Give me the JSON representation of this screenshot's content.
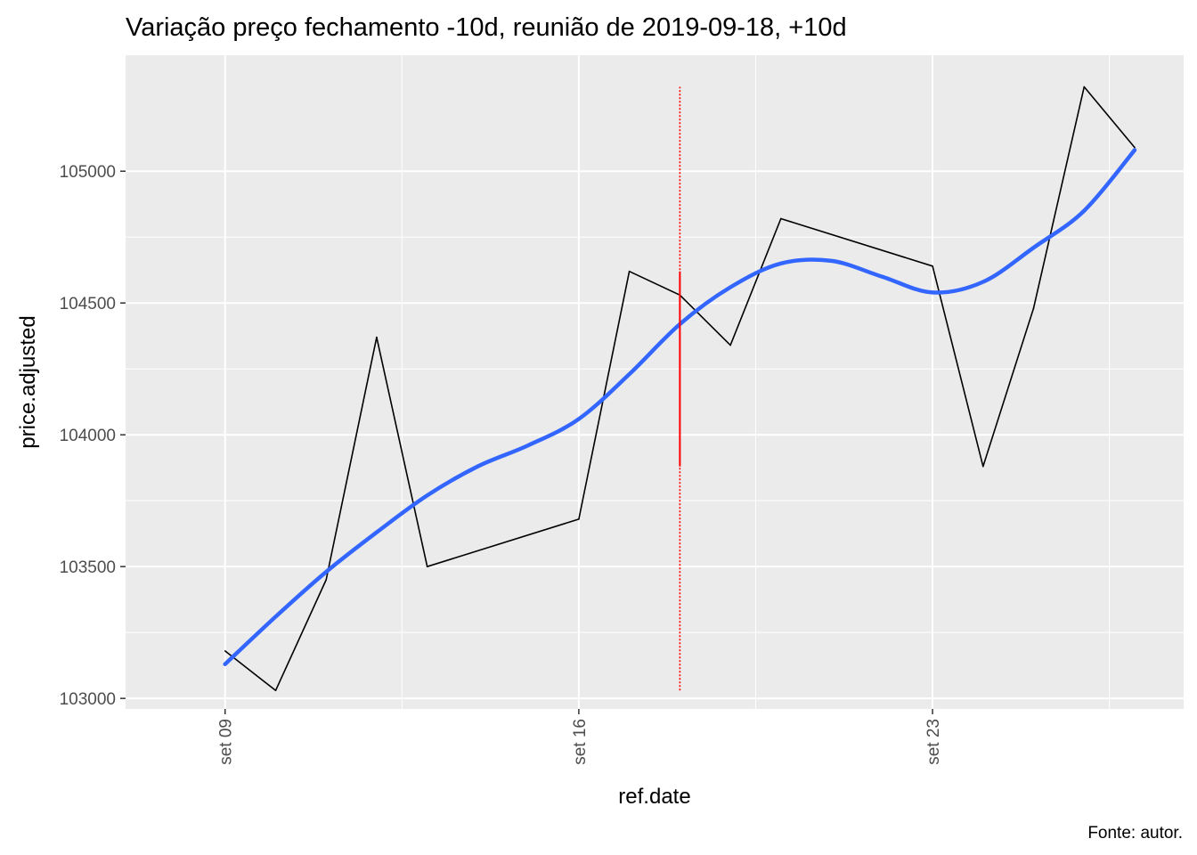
{
  "chart_data": {
    "type": "line",
    "title": "Variação preço fechamento -10d, reunião de 2019-09-18, +10d",
    "xlabel": "ref.date",
    "ylabel": "price.adjusted",
    "caption": "Fonte: autor.",
    "x_ticks": [
      {
        "label": "set 09",
        "date": "2019-09-09"
      },
      {
        "label": "set 16",
        "date": "2019-09-16"
      },
      {
        "label": "set 23",
        "date": "2019-09-23"
      }
    ],
    "y_ticks": [
      103000,
      103500,
      104000,
      104500,
      105000
    ],
    "xlim": [
      "2019-09-08",
      "2019-09-27"
    ],
    "ylim": [
      102960,
      105440
    ],
    "grid": true,
    "series": [
      {
        "points": [
          {
            "x": "2019-09-09",
            "y": 103180
          },
          {
            "x": "2019-09-10",
            "y": 103030
          },
          {
            "x": "2019-09-11",
            "y": 103450
          },
          {
            "x": "2019-09-12",
            "y": 104370
          },
          {
            "x": "2019-09-13",
            "y": 103500
          },
          {
            "x": "2019-09-16",
            "y": 103680
          },
          {
            "x": "2019-09-17",
            "y": 104620
          },
          {
            "x": "2019-09-18",
            "y": 104530
          },
          {
            "x": "2019-09-19",
            "y": 104340
          },
          {
            "x": "2019-09-20",
            "y": 104820
          },
          {
            "x": "2019-09-23",
            "y": 104640
          },
          {
            "x": "2019-09-24",
            "y": 103880
          },
          {
            "x": "2019-09-25",
            "y": 104480
          },
          {
            "x": "2019-09-26",
            "y": 105320
          },
          {
            "x": "2019-09-27",
            "y": 105090
          }
        ],
        "color": "#000000"
      }
    ],
    "smooth": {
      "color": "#3366FF",
      "points": [
        {
          "x": "2019-09-09",
          "y": 103130
        },
        {
          "x": "2019-09-10",
          "y": 103310
        },
        {
          "x": "2019-09-11",
          "y": 103480
        },
        {
          "x": "2019-09-12",
          "y": 103630
        },
        {
          "x": "2019-09-13",
          "y": 103770
        },
        {
          "x": "2019-09-14",
          "y": 103880
        },
        {
          "x": "2019-09-15",
          "y": 103960
        },
        {
          "x": "2019-09-16",
          "y": 104060
        },
        {
          "x": "2019-09-17",
          "y": 104230
        },
        {
          "x": "2019-09-18",
          "y": 104420
        },
        {
          "x": "2019-09-19",
          "y": 104560
        },
        {
          "x": "2019-09-20",
          "y": 104650
        },
        {
          "x": "2019-09-21",
          "y": 104660
        },
        {
          "x": "2019-09-22",
          "y": 104600
        },
        {
          "x": "2019-09-23",
          "y": 104540
        },
        {
          "x": "2019-09-24",
          "y": 104580
        },
        {
          "x": "2019-09-25",
          "y": 104710
        },
        {
          "x": "2019-09-26",
          "y": 104850
        },
        {
          "x": "2019-09-27",
          "y": 105080
        }
      ]
    },
    "vline": {
      "x": "2019-09-18",
      "ymin": 103030,
      "ymax": 105320,
      "color": "#FF0000",
      "style": "dotted"
    }
  }
}
